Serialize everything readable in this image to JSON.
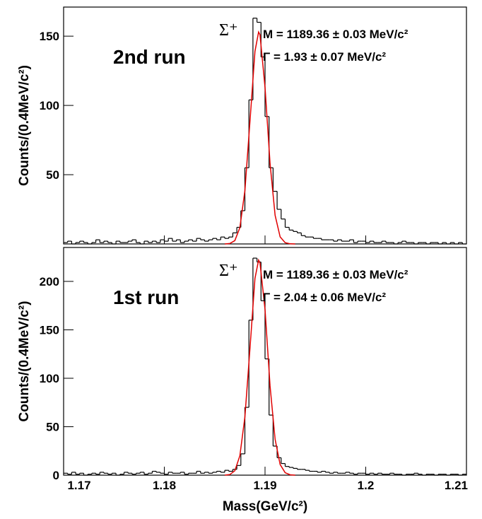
{
  "chart_data": [
    {
      "type": "histogram",
      "run_label": "2nd run",
      "particle": "Σ⁺",
      "mass_text": "M = 1189.36 ± 0.03 MeV/c²",
      "width_text": "Γ = 1.93 ± 0.07 MeV/c²",
      "y_label": "Counts/(0.4MeV/c²)",
      "xlim": [
        1.17,
        1.21
      ],
      "ylim": [
        0,
        171
      ],
      "yticks": [
        50,
        100,
        150
      ],
      "color": "#000000",
      "bins": [
        1.17,
        1.1704,
        1.1708,
        1.1712,
        1.1716,
        1.172,
        1.1724,
        1.1728,
        1.1732,
        1.1736,
        1.174,
        1.1744,
        1.1748,
        1.1752,
        1.1756,
        1.176,
        1.1764,
        1.1768,
        1.1772,
        1.1776,
        1.178,
        1.1784,
        1.1788,
        1.1792,
        1.1796,
        1.18,
        1.1804,
        1.1808,
        1.1812,
        1.1816,
        1.182,
        1.1824,
        1.1828,
        1.1832,
        1.1836,
        1.184,
        1.1844,
        1.1848,
        1.1852,
        1.1856,
        1.186,
        1.1864,
        1.1868,
        1.1872,
        1.1876,
        1.188,
        1.1884,
        1.1888,
        1.1892,
        1.1896,
        1.19,
        1.1904,
        1.1908,
        1.1912,
        1.1916,
        1.192,
        1.1924,
        1.1928,
        1.1932,
        1.1936,
        1.194,
        1.1944,
        1.1948,
        1.1952,
        1.1956,
        1.196,
        1.1964,
        1.1968,
        1.1972,
        1.1976,
        1.198,
        1.1984,
        1.1988,
        1.1992,
        1.1996,
        1.2,
        1.2004,
        1.2008,
        1.2012,
        1.2016,
        1.202,
        1.2024,
        1.2028,
        1.2032,
        1.2036,
        1.204,
        1.2044,
        1.2048,
        1.2052,
        1.2056,
        1.206,
        1.2064,
        1.2068,
        1.2072,
        1.2076,
        1.208,
        1.2084,
        1.2088,
        1.2092,
        1.2096,
        1.21
      ],
      "values": [
        1,
        2,
        0,
        1,
        2,
        1,
        0,
        1,
        3,
        1,
        2,
        1,
        0,
        2,
        1,
        1,
        2,
        3,
        1,
        0,
        2,
        1,
        2,
        1,
        3,
        2,
        4,
        2,
        3,
        1,
        2,
        3,
        2,
        4,
        3,
        2,
        3,
        4,
        3,
        5,
        4,
        5,
        8,
        12,
        24,
        55,
        104,
        163,
        160,
        135,
        92,
        55,
        38,
        25,
        18,
        12,
        10,
        9,
        8,
        6,
        5,
        5,
        4,
        4,
        3,
        3,
        3,
        2,
        3,
        2,
        2,
        3,
        1,
        2,
        2,
        1,
        2,
        1,
        1,
        2,
        1,
        1,
        0,
        1,
        2,
        1,
        1,
        0,
        1,
        1,
        0,
        1,
        1,
        0,
        1,
        0,
        1,
        0,
        1,
        0
      ],
      "fit": {
        "color": "#e00000",
        "x": [
          1.186,
          1.1865,
          1.187,
          1.1875,
          1.188,
          1.1885,
          1.189,
          1.18936,
          1.1895,
          1.19,
          1.1905,
          1.191,
          1.1915,
          1.192,
          1.1925,
          1.193
        ],
        "values": [
          0,
          0.3,
          2.4,
          11.7,
          38.4,
          88,
          139,
          153,
          151,
          113,
          58,
          20.7,
          5.1,
          0.9,
          0.1,
          0
        ]
      }
    },
    {
      "type": "histogram",
      "run_label": "1st run",
      "particle": "Σ⁺",
      "mass_text": "M = 1189.36 ± 0.03 MeV/c²",
      "width_text": "Γ = 2.04 ± 0.06 MeV/c²",
      "y_label": "Counts/(0.4MeV/c²)",
      "x_label": "Mass(GeV/c²)",
      "xlim": [
        1.17,
        1.21
      ],
      "xticks": [
        1.17,
        1.18,
        1.19,
        1.2,
        1.21
      ],
      "ylim": [
        0,
        235
      ],
      "yticks": [
        0,
        50,
        100,
        150,
        200
      ],
      "color": "#000000",
      "bins": [
        1.17,
        1.1704,
        1.1708,
        1.1712,
        1.1716,
        1.172,
        1.1724,
        1.1728,
        1.1732,
        1.1736,
        1.174,
        1.1744,
        1.1748,
        1.1752,
        1.1756,
        1.176,
        1.1764,
        1.1768,
        1.1772,
        1.1776,
        1.178,
        1.1784,
        1.1788,
        1.1792,
        1.1796,
        1.18,
        1.1804,
        1.1808,
        1.1812,
        1.1816,
        1.182,
        1.1824,
        1.1828,
        1.1832,
        1.1836,
        1.184,
        1.1844,
        1.1848,
        1.1852,
        1.1856,
        1.186,
        1.1864,
        1.1868,
        1.1872,
        1.1876,
        1.188,
        1.1884,
        1.1888,
        1.1892,
        1.1896,
        1.19,
        1.1904,
        1.1908,
        1.1912,
        1.1916,
        1.192,
        1.1924,
        1.1928,
        1.1932,
        1.1936,
        1.194,
        1.1944,
        1.1948,
        1.1952,
        1.1956,
        1.196,
        1.1964,
        1.1968,
        1.1972,
        1.1976,
        1.198,
        1.1984,
        1.1988,
        1.1992,
        1.1996,
        1.2,
        1.2004,
        1.2008,
        1.2012,
        1.2016,
        1.202,
        1.2024,
        1.2028,
        1.2032,
        1.2036,
        1.204,
        1.2044,
        1.2048,
        1.2052,
        1.2056,
        1.206,
        1.2064,
        1.2068,
        1.2072,
        1.2076,
        1.208,
        1.2084,
        1.2088,
        1.2092,
        1.2096,
        1.21
      ],
      "values": [
        2,
        1,
        3,
        1,
        2,
        0,
        1,
        2,
        1,
        3,
        2,
        1,
        2,
        0,
        1,
        3,
        2,
        1,
        2,
        3,
        1,
        2,
        4,
        3,
        2,
        1,
        3,
        2,
        2,
        3,
        1,
        2,
        2,
        4,
        2,
        3,
        2,
        3,
        4,
        3,
        5,
        4,
        6,
        10,
        22,
        70,
        160,
        224,
        220,
        180,
        120,
        62,
        30,
        18,
        12,
        9,
        8,
        7,
        6,
        6,
        5,
        4,
        4,
        3,
        4,
        3,
        2,
        3,
        2,
        2,
        3,
        2,
        1,
        2,
        2,
        1,
        2,
        1,
        2,
        1,
        1,
        2,
        1,
        1,
        0,
        1,
        1,
        2,
        1,
        0,
        1,
        1,
        0,
        1,
        1,
        0,
        1,
        1,
        0,
        1
      ],
      "fit": {
        "color": "#e00000",
        "x": [
          1.186,
          1.1865,
          1.187,
          1.1875,
          1.188,
          1.1885,
          1.189,
          1.18936,
          1.1895,
          1.19,
          1.1905,
          1.191,
          1.1915,
          1.192,
          1.1925,
          1.193
        ],
        "values": [
          0,
          0.6,
          4.5,
          20,
          60,
          130,
          203,
          222,
          219,
          171,
          92,
          37,
          11,
          2.5,
          0.4,
          0
        ]
      }
    }
  ]
}
